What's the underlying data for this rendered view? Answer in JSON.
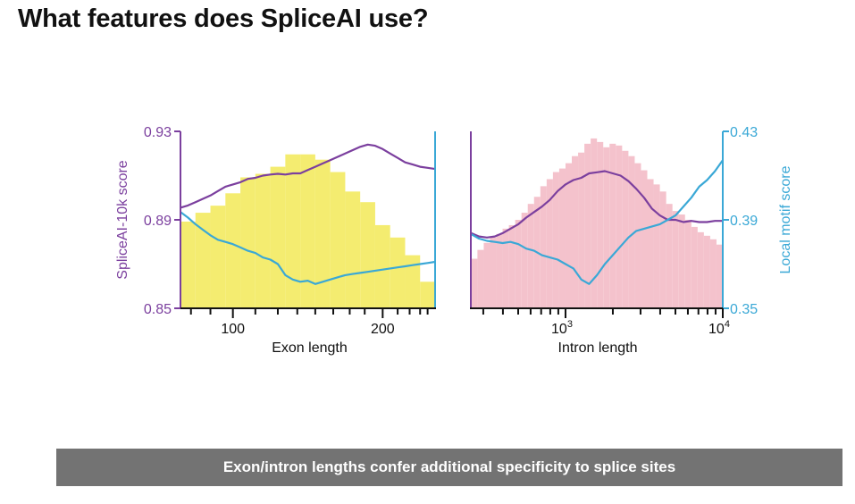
{
  "page": {
    "title": "What features does SpliceAI use?"
  },
  "banner": {
    "text": "Exon/intron lengths confer additional specificity to splice sites"
  },
  "colors": {
    "purple": "#7b3f9e",
    "blue": "#3aa8d6",
    "exon_fill": "#f4ec70",
    "intron_fill": "#f4c2cc",
    "axis": "#111111"
  },
  "chart_data": [
    {
      "type": "bar",
      "panel": "exon",
      "xlabel": "Exon length",
      "xlim": [
        65,
        235
      ],
      "x_scale": "linear",
      "x_ticks": [
        {
          "value": 100,
          "label": "100"
        },
        {
          "value": 200,
          "label": "200"
        }
      ],
      "x_minor_ticks": [
        72,
        85,
        115,
        130,
        143,
        155,
        167,
        178,
        188,
        210,
        218,
        225,
        230
      ],
      "y_left": {
        "label": "SpliceAI-10k score",
        "lim": [
          0.85,
          0.93
        ],
        "ticks": [
          "0.85",
          "0.89",
          "0.93"
        ]
      },
      "histogram": {
        "bin_width": 10,
        "x": [
          65,
          75,
          85,
          95,
          105,
          115,
          125,
          135,
          145,
          155,
          165,
          175,
          185,
          195,
          205,
          215,
          225
        ],
        "density": [
          0.49,
          0.54,
          0.58,
          0.65,
          0.74,
          0.76,
          0.8,
          0.87,
          0.87,
          0.84,
          0.77,
          0.66,
          0.6,
          0.47,
          0.4,
          0.3,
          0.15
        ]
      },
      "series": [
        {
          "name": "SpliceAI-10k score",
          "axis": "left",
          "x": [
            65,
            70,
            75,
            80,
            85,
            90,
            95,
            100,
            105,
            110,
            115,
            120,
            125,
            130,
            135,
            140,
            145,
            150,
            155,
            160,
            165,
            170,
            175,
            180,
            185,
            190,
            195,
            200,
            205,
            210,
            215,
            220,
            225,
            230,
            235
          ],
          "y": [
            0.8955,
            0.8965,
            0.898,
            0.8995,
            0.901,
            0.903,
            0.905,
            0.906,
            0.907,
            0.9085,
            0.909,
            0.91,
            0.9105,
            0.9108,
            0.9105,
            0.911,
            0.911,
            0.9125,
            0.914,
            0.9155,
            0.917,
            0.9185,
            0.92,
            0.9215,
            0.923,
            0.924,
            0.9235,
            0.922,
            0.92,
            0.918,
            0.916,
            0.915,
            0.914,
            0.9135,
            0.913
          ]
        },
        {
          "name": "Local motif score",
          "axis": "right",
          "x": [
            65,
            70,
            75,
            80,
            85,
            90,
            95,
            100,
            105,
            110,
            115,
            120,
            125,
            130,
            135,
            140,
            145,
            150,
            155,
            160,
            165,
            170,
            175,
            180,
            185,
            190,
            195,
            200,
            205,
            210,
            215,
            220,
            225,
            230,
            235
          ],
          "y": [
            0.3935,
            0.391,
            0.388,
            0.3855,
            0.383,
            0.381,
            0.38,
            0.379,
            0.3775,
            0.376,
            0.375,
            0.373,
            0.372,
            0.37,
            0.365,
            0.363,
            0.362,
            0.3625,
            0.361,
            0.362,
            0.363,
            0.364,
            0.365,
            0.3655,
            0.366,
            0.3665,
            0.367,
            0.3675,
            0.368,
            0.3685,
            0.369,
            0.3695,
            0.37,
            0.3705,
            0.371
          ]
        }
      ]
    },
    {
      "type": "bar",
      "panel": "intron",
      "xlabel": "Intron length",
      "x_scale": "log",
      "xlim": [
        250,
        10000
      ],
      "x_ticks": [
        {
          "value": 1000,
          "label": "10",
          "exp": "3"
        },
        {
          "value": 10000,
          "label": "10",
          "exp": "4"
        }
      ],
      "x_minor_ticks": [
        300,
        400,
        500,
        600,
        700,
        800,
        900,
        2000,
        3000,
        4000,
        5000,
        6000,
        7000,
        8000,
        9000
      ],
      "y_right": {
        "label": "Local motif score",
        "lim": [
          0.35,
          0.43
        ],
        "ticks": [
          "0.35",
          "0.39",
          "0.43"
        ]
      },
      "histogram": {
        "log_x": [
          2.4,
          2.44,
          2.48,
          2.52,
          2.56,
          2.6,
          2.64,
          2.68,
          2.72,
          2.76,
          2.8,
          2.84,
          2.88,
          2.92,
          2.96,
          3.0,
          3.04,
          3.08,
          3.12,
          3.16,
          3.2,
          3.24,
          3.28,
          3.32,
          3.36,
          3.4,
          3.44,
          3.48,
          3.52,
          3.56,
          3.6,
          3.64,
          3.68,
          3.72,
          3.76,
          3.8,
          3.84,
          3.88,
          3.92,
          3.96
        ],
        "density": [
          0.28,
          0.33,
          0.37,
          0.4,
          0.42,
          0.45,
          0.47,
          0.5,
          0.54,
          0.59,
          0.63,
          0.69,
          0.73,
          0.77,
          0.79,
          0.82,
          0.86,
          0.88,
          0.93,
          0.96,
          0.94,
          0.91,
          0.93,
          0.92,
          0.89,
          0.86,
          0.82,
          0.78,
          0.73,
          0.7,
          0.66,
          0.59,
          0.55,
          0.53,
          0.5,
          0.46,
          0.43,
          0.41,
          0.39,
          0.36
        ]
      },
      "series": [
        {
          "name": "SpliceAI-10k score",
          "axis": "left",
          "log_x": [
            2.4,
            2.45,
            2.5,
            2.55,
            2.6,
            2.65,
            2.7,
            2.75,
            2.8,
            2.85,
            2.9,
            2.95,
            3.0,
            3.05,
            3.1,
            3.15,
            3.2,
            3.25,
            3.3,
            3.35,
            3.4,
            3.45,
            3.5,
            3.55,
            3.6,
            3.65,
            3.7,
            3.75,
            3.8,
            3.85,
            3.9,
            3.95,
            4.0
          ],
          "y": [
            0.884,
            0.8825,
            0.882,
            0.8825,
            0.884,
            0.886,
            0.888,
            0.891,
            0.8935,
            0.896,
            0.899,
            0.903,
            0.906,
            0.908,
            0.909,
            0.911,
            0.9115,
            0.912,
            0.911,
            0.91,
            0.9075,
            0.904,
            0.9,
            0.895,
            0.892,
            0.89,
            0.89,
            0.889,
            0.8895,
            0.889,
            0.889,
            0.8895,
            0.8895
          ]
        },
        {
          "name": "Local motif score",
          "axis": "right",
          "log_x": [
            2.4,
            2.45,
            2.5,
            2.55,
            2.6,
            2.65,
            2.7,
            2.75,
            2.8,
            2.85,
            2.9,
            2.95,
            3.0,
            3.05,
            3.1,
            3.15,
            3.2,
            3.25,
            3.3,
            3.35,
            3.4,
            3.45,
            3.5,
            3.55,
            3.6,
            3.65,
            3.7,
            3.75,
            3.8,
            3.85,
            3.9,
            3.95,
            4.0
          ],
          "y": [
            0.3835,
            0.3815,
            0.3805,
            0.38,
            0.3795,
            0.38,
            0.379,
            0.377,
            0.376,
            0.374,
            0.373,
            0.372,
            0.37,
            0.368,
            0.363,
            0.361,
            0.365,
            0.37,
            0.374,
            0.378,
            0.382,
            0.385,
            0.386,
            0.387,
            0.388,
            0.39,
            0.392,
            0.396,
            0.4,
            0.405,
            0.408,
            0.412,
            0.417
          ]
        }
      ]
    }
  ]
}
